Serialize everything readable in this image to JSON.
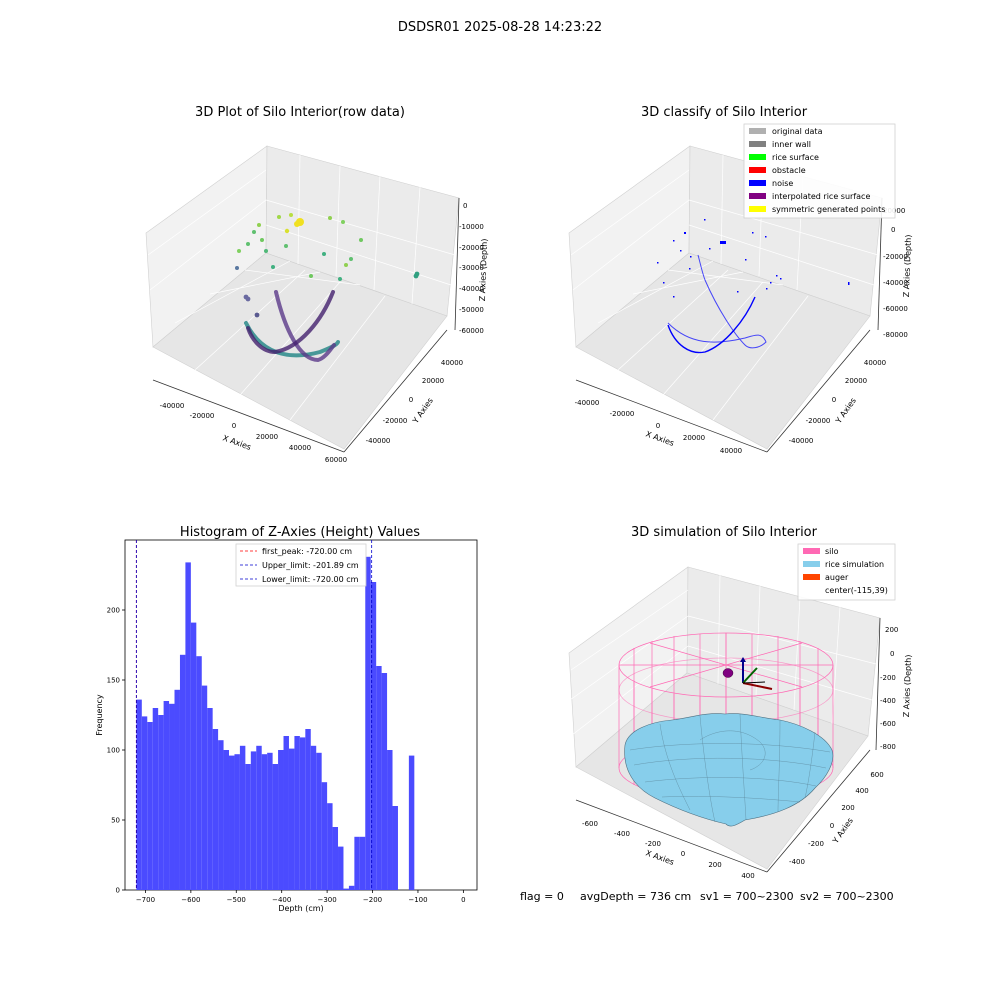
{
  "suptitle": "DSDSR01 2025-08-28 14:23:22",
  "colors": {
    "hist_bar": "#4b4bff",
    "peak_line": "#ff0000",
    "limit_line": "#0000cc",
    "pane": "#f2f2f2",
    "silo": "#ff69b4",
    "rice": "#87ceeb",
    "auger": "#ff4500"
  },
  "status": {
    "flag": "flag = 0",
    "avg_depth": "avgDepth = 736 cm",
    "sv1": "sv1 = 700~2300",
    "sv2": "sv2 = 700~2300"
  },
  "chart_data": [
    {
      "type": "scatter",
      "title": "3D Plot of Silo Interior(row data)",
      "xlabel": "X Axies",
      "ylabel": "Y Axies",
      "zlabel": "Z Axies (Depth)",
      "x_ticks": [
        "-40000",
        "-20000",
        "0",
        "20000",
        "40000",
        "60000"
      ],
      "y_ticks": [
        "-40000",
        "-20000",
        "0",
        "20000",
        "40000"
      ],
      "z_ticks": [
        "0",
        "-10000",
        "-20000",
        "-30000",
        "-40000",
        "-50000",
        "-60000"
      ]
    },
    {
      "type": "scatter",
      "title": "3D classify of Silo Interior",
      "xlabel": "X Axies",
      "ylabel": "Y Axies",
      "zlabel": "Z Axies (Depth)",
      "x_ticks": [
        "-40000",
        "-20000",
        "0",
        "20000",
        "40000"
      ],
      "y_ticks": [
        "-40000",
        "-20000",
        "0",
        "20000",
        "40000"
      ],
      "z_ticks": [
        "20000",
        "0",
        "-20000",
        "-40000",
        "-60000",
        "-80000"
      ],
      "legend": [
        {
          "label": "original data",
          "color": "#b0b0b0"
        },
        {
          "label": "inner wall",
          "color": "#808080"
        },
        {
          "label": "rice surface",
          "color": "#00ff00"
        },
        {
          "label": "obstacle",
          "color": "#ff0000"
        },
        {
          "label": "noise",
          "color": "#0000ff"
        },
        {
          "label": "interpolated rice surface",
          "color": "#800080"
        },
        {
          "label": "symmetric generated points",
          "color": "#ffff00"
        }
      ]
    },
    {
      "type": "bar",
      "title": "Histogram of Z-Axies (Height) Values",
      "xlabel": "Depth (cm)",
      "ylabel": "Frequency",
      "xlim": [
        -745,
        30
      ],
      "ylim": [
        0,
        250
      ],
      "x_ticks": [
        -700,
        -600,
        -500,
        -400,
        -300,
        -200,
        -100,
        0
      ],
      "y_ticks": [
        0,
        50,
        100,
        150,
        200
      ],
      "bin_start": -720,
      "bin_width": 12,
      "values": [
        136,
        124,
        120,
        130,
        125,
        135,
        133,
        143,
        168,
        234,
        191,
        167,
        146,
        130,
        115,
        107,
        100,
        96,
        97,
        103,
        90,
        99,
        103,
        97,
        98,
        90,
        100,
        110,
        101,
        110,
        109,
        115,
        103,
        98,
        77,
        62,
        45,
        31,
        1,
        3,
        38,
        38,
        238,
        220,
        160,
        155,
        100,
        60,
        0,
        0,
        96
      ],
      "lines": [
        {
          "label": "first_peak: -720.00 cm",
          "x": -720,
          "color": "#ff0000"
        },
        {
          "label": "Upper_limit: -201.89 cm",
          "x": -201.89,
          "color": "#0000cc"
        },
        {
          "label": "Lower_limit: -720.00 cm",
          "x": -720,
          "color": "#0000cc"
        }
      ]
    },
    {
      "type": "scatter",
      "title": "3D simulation of Silo Interior",
      "xlabel": "X Axies",
      "ylabel": "Y Axies",
      "zlabel": "Z Axies (Depth)",
      "x_ticks": [
        "-600",
        "-400",
        "-200",
        "0",
        "200",
        "400"
      ],
      "y_ticks": [
        "-400",
        "-200",
        "0",
        "200",
        "400",
        "600"
      ],
      "z_ticks": [
        "200",
        "0",
        "-200",
        "-400",
        "-600",
        "-800"
      ],
      "legend": [
        {
          "label": "silo",
          "color": "#ff69b4"
        },
        {
          "label": "rice simulation",
          "color": "#87ceeb"
        },
        {
          "label": "auger",
          "color": "#ff4500"
        },
        {
          "label": "center(-115,39)",
          "color": ""
        }
      ]
    }
  ]
}
